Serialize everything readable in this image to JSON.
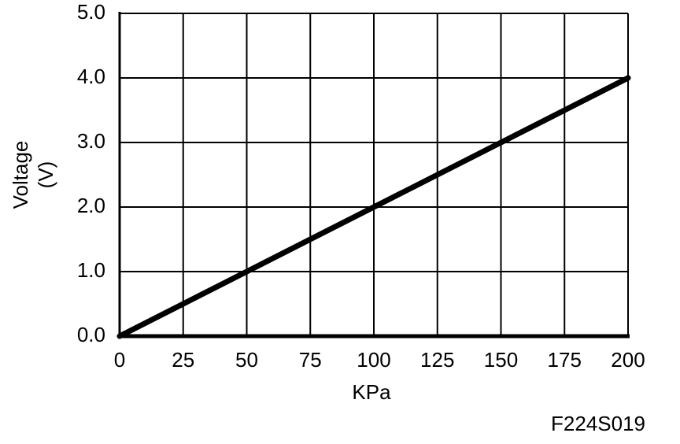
{
  "chart_data": {
    "type": "line",
    "x_label": "KPa",
    "y_label": [
      "Voltage",
      "(V)"
    ],
    "footnote": "F224S019",
    "x": [
      0,
      50,
      100,
      150,
      200
    ],
    "series": [
      {
        "color": "#000000",
        "values": [
          0,
          1,
          2,
          3,
          4
        ]
      }
    ],
    "xlim": [
      0,
      200
    ],
    "xticks": [
      0,
      25,
      50,
      75,
      100,
      125,
      150,
      175,
      200
    ],
    "ylim": [
      0,
      5
    ],
    "yticks": [
      {
        "value": 0,
        "label": "0.0"
      },
      {
        "value": 1,
        "label": "1.0"
      },
      {
        "value": 2,
        "label": "2.0"
      },
      {
        "value": 3,
        "label": "3.0"
      },
      {
        "value": 4,
        "label": "4.0"
      },
      {
        "value": 5,
        "label": "5.0"
      }
    ],
    "grid": true
  }
}
